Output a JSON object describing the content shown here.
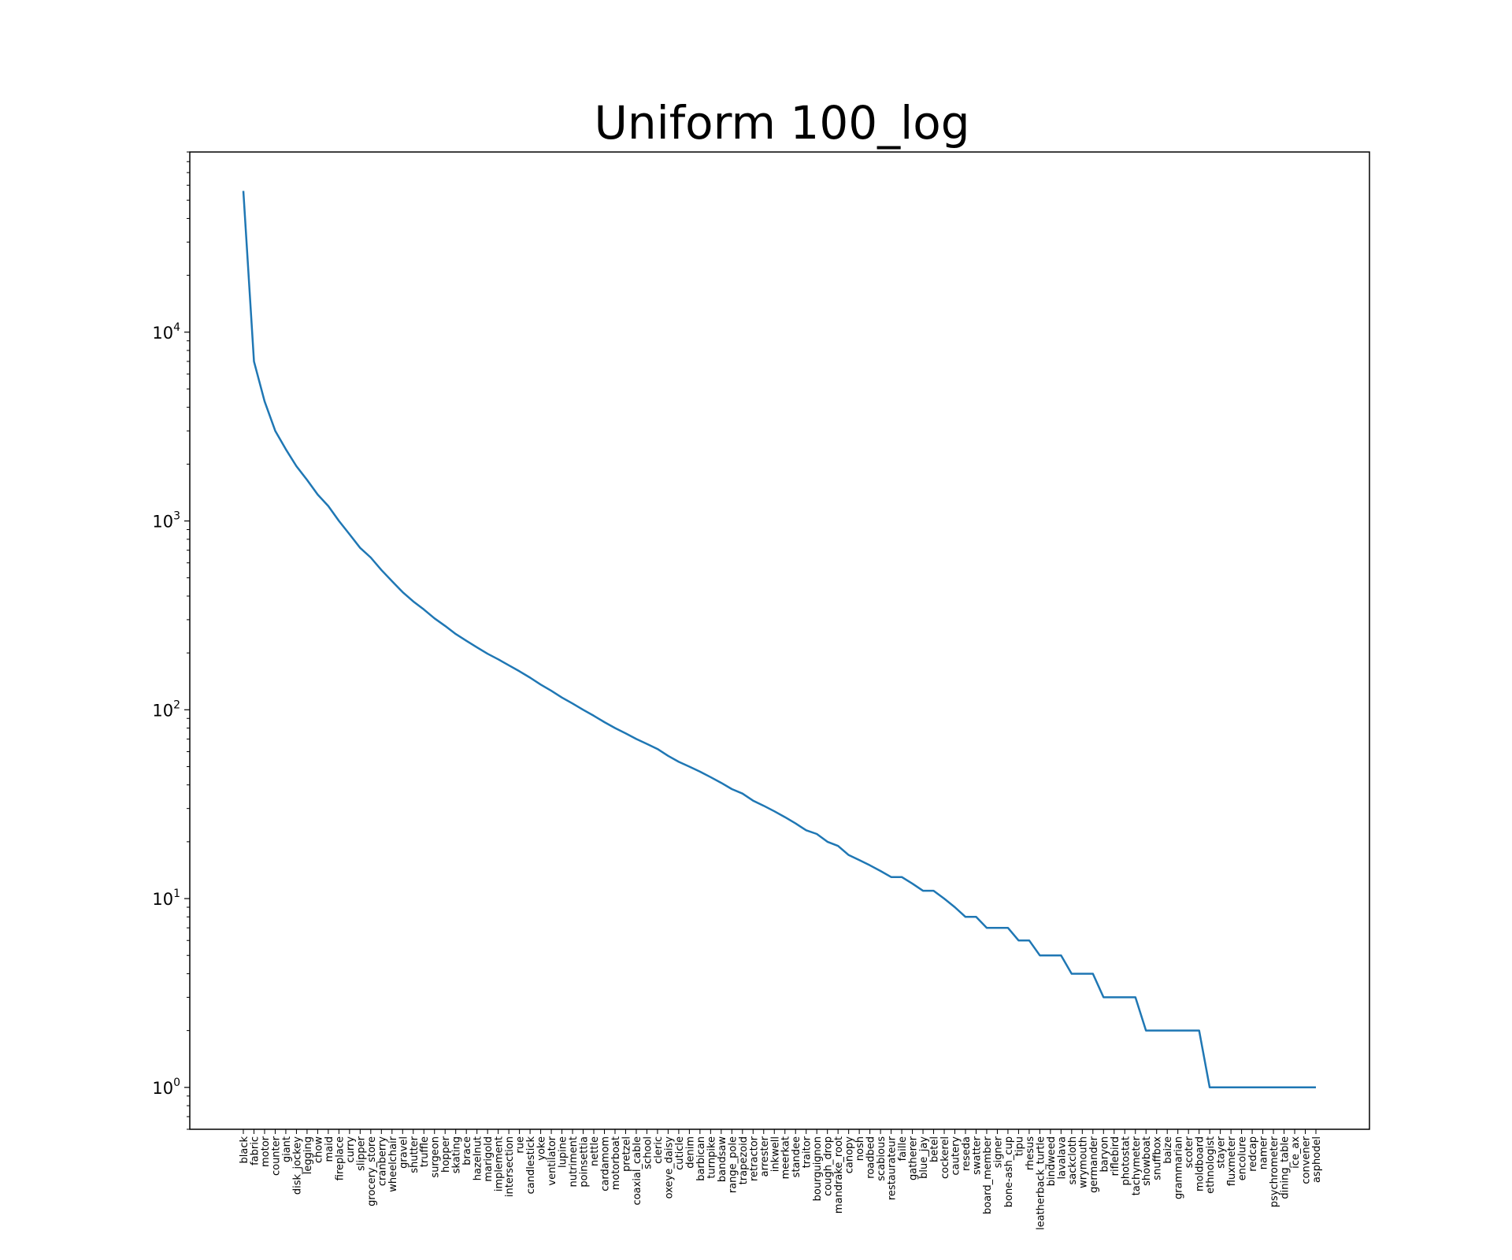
{
  "chart_data": {
    "type": "line",
    "title": "Uniform 100_log",
    "xlabel": "",
    "ylabel": "",
    "yscale": "log",
    "ylim": [
      0.6,
      90000
    ],
    "y_ticks": [
      {
        "base": "10",
        "exp": "0",
        "value": 1
      },
      {
        "base": "10",
        "exp": "1",
        "value": 10
      },
      {
        "base": "10",
        "exp": "2",
        "value": 100
      },
      {
        "base": "10",
        "exp": "3",
        "value": 1000
      },
      {
        "base": "10",
        "exp": "4",
        "value": 10000
      }
    ],
    "grid": false,
    "legend": "none",
    "line_color": "#1f77b4",
    "categories": [
      "black",
      "fabric",
      "motor",
      "counter",
      "giant",
      "disk_jockey",
      "legging",
      "chow",
      "maid",
      "fireplace",
      "curry",
      "slipper",
      "grocery_store",
      "cranberry",
      "wheelchair",
      "gravel",
      "shutter",
      "truffle",
      "surgeon",
      "hopper",
      "skating",
      "brace",
      "hazelnut",
      "marigold",
      "implement",
      "intersection",
      "rue",
      "candlestick",
      "yoke",
      "ventilator",
      "lupine",
      "nutriment",
      "poinsettia",
      "nettle",
      "cardamom",
      "motorboat",
      "pretzel",
      "coaxial_cable",
      "school",
      "cleric",
      "oxeye_daisy",
      "cuticle",
      "denim",
      "barbican",
      "turnpike",
      "bandsaw",
      "range_pole",
      "trapezoid",
      "retractor",
      "arrester",
      "inkwell",
      "meerkat",
      "standee",
      "traitor",
      "bourguignon",
      "cough_drop",
      "mandrake_root",
      "canopy",
      "nosh",
      "roadbed",
      "scabious",
      "restaurateur",
      "faille",
      "gatherer",
      "blue_jay",
      "betel",
      "cockerel",
      "cautery",
      "reseda",
      "swatter",
      "board_member",
      "signer",
      "bone-ash_cup",
      "tipu",
      "rhesus",
      "leatherback_turtle",
      "bindweed",
      "lavalava",
      "sackcloth",
      "wrymouth",
      "germander",
      "baryon",
      "riflebird",
      "photostat",
      "tachymeter",
      "showboat",
      "snuffbox",
      "baize",
      "grammarian",
      "scoter",
      "moldboard",
      "ethnologist",
      "stayer",
      "fluxmeter",
      "encolure",
      "redcap",
      "namer",
      "psychrometer",
      "dining_table",
      "ice_ax",
      "convener",
      "asphodel"
    ],
    "values": [
      56000,
      7000,
      4300,
      3000,
      2400,
      1950,
      1650,
      1380,
      1200,
      1000,
      850,
      720,
      640,
      550,
      480,
      420,
      375,
      340,
      305,
      278,
      252,
      232,
      214,
      198,
      185,
      172,
      160,
      148,
      136,
      126,
      116,
      108,
      100,
      93,
      86,
      80,
      75,
      70,
      66,
      62,
      57,
      53,
      50,
      47,
      44,
      41,
      38,
      36,
      33,
      31,
      29,
      27,
      25,
      23,
      22,
      20,
      19,
      17,
      16,
      15,
      14,
      13,
      13,
      12,
      11,
      11,
      10,
      9,
      8,
      8,
      7,
      7,
      7,
      6,
      6,
      5,
      5,
      5,
      4,
      4,
      4,
      3,
      3,
      3,
      3,
      2,
      2,
      2,
      2,
      2,
      2,
      1,
      1,
      1,
      1,
      1,
      1,
      1,
      1,
      1,
      1,
      1
    ]
  }
}
